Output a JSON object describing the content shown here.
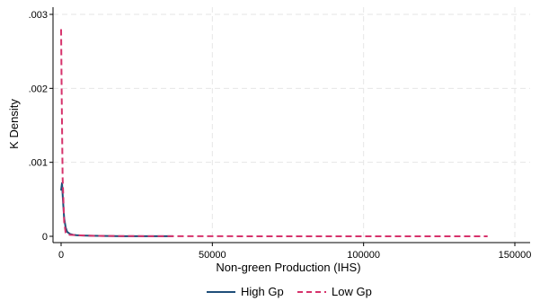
{
  "chart_data": {
    "type": "line",
    "title": "",
    "xlabel": "Non-green Production (IHS)",
    "ylabel": "K Density",
    "xlim": [
      0,
      150000
    ],
    "ylim": [
      0,
      0.003
    ],
    "x_ticks": [
      0,
      50000,
      100000,
      150000
    ],
    "x_tick_labels": [
      "0",
      "50000",
      "100000",
      "150000"
    ],
    "y_ticks": [
      0,
      0.001,
      0.002,
      0.003
    ],
    "y_tick_labels": [
      "0",
      ".001",
      ".002",
      ".003"
    ],
    "grid": true,
    "legend_position": "bottom",
    "series": [
      {
        "name": "High Gp",
        "color": "#1f4e79",
        "dash": "solid",
        "x": [
          0,
          300,
          600,
          1000,
          1500,
          2000,
          3000,
          4000,
          5000,
          7000,
          10000,
          15000,
          20000,
          30000,
          37000
        ],
        "y": [
          0.00062,
          0.00072,
          0.0005,
          0.00025,
          0.00012,
          6e-05,
          3e-05,
          2e-05,
          1.5e-05,
          1e-05,
          7e-06,
          4e-06,
          2e-06,
          1e-06,
          1e-06
        ]
      },
      {
        "name": "Low Gp",
        "color": "#d6336c",
        "dash": "dashed",
        "x": [
          0,
          200,
          500,
          1000,
          1500,
          2000,
          3000,
          5000,
          8000,
          12000,
          20000,
          40000,
          80000,
          120000,
          141000
        ],
        "y": [
          0.0028,
          0.0019,
          0.0008,
          0.0002,
          5e-05,
          2.5e-05,
          2e-05,
          1.5e-05,
          1e-05,
          6e-06,
          3e-06,
          1e-06,
          5e-07,
          5e-07,
          5e-07
        ]
      }
    ]
  }
}
